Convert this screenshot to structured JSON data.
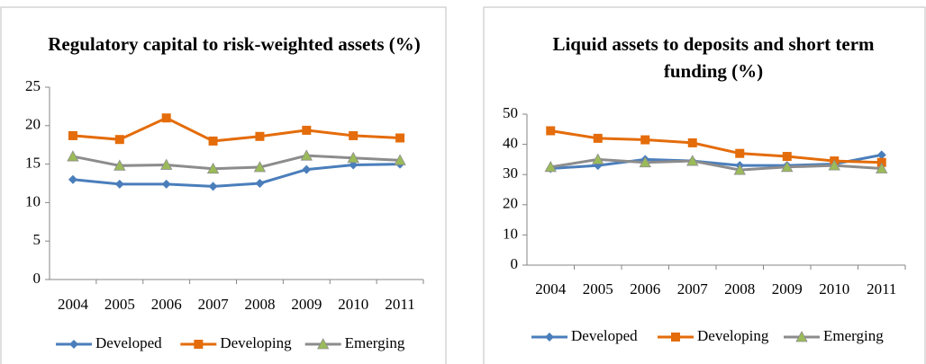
{
  "chart_data": [
    {
      "type": "line",
      "title": "Regulatory capital to risk-weighted assets (%)",
      "categories": [
        "2004",
        "2005",
        "2006",
        "2007",
        "2008",
        "2009",
        "2010",
        "2011"
      ],
      "ylim": [
        0,
        25
      ],
      "yticks": [
        0,
        5,
        10,
        15,
        20,
        25
      ],
      "series": [
        {
          "name": "Developed",
          "color": "#4a7ebb",
          "marker": "diamond",
          "values": [
            13,
            12.4,
            12.4,
            12.1,
            12.5,
            14.3,
            14.9,
            15.0
          ]
        },
        {
          "name": "Developing",
          "color": "#e46c0a",
          "marker": "square",
          "values": [
            18.7,
            18.2,
            21,
            18,
            18.6,
            19.4,
            18.7,
            18.4
          ]
        },
        {
          "name": "Emerging",
          "color": "#8c8c8c",
          "marker": "triangle",
          "values": [
            16,
            14.8,
            14.9,
            14.4,
            14.6,
            16.1,
            15.8,
            15.5
          ]
        }
      ]
    },
    {
      "type": "line",
      "title": "Liquid assets to deposits and short term funding (%)",
      "categories": [
        "2004",
        "2005",
        "2006",
        "2007",
        "2008",
        "2009",
        "2010",
        "2011"
      ],
      "ylim": [
        0,
        50
      ],
      "yticks": [
        0,
        10,
        20,
        30,
        40,
        50
      ],
      "series": [
        {
          "name": "Developed",
          "color": "#4a7ebb",
          "marker": "diamond",
          "values": [
            32,
            33,
            35,
            34.5,
            33,
            33,
            33.5,
            36.5
          ]
        },
        {
          "name": "Developing",
          "color": "#e46c0a",
          "marker": "square",
          "values": [
            44.5,
            42,
            41.5,
            40.5,
            37,
            36,
            34.5,
            34
          ]
        },
        {
          "name": "Emerging",
          "color": "#8c8c8c",
          "marker": "triangle",
          "values": [
            32.5,
            35,
            34,
            34.5,
            31.5,
            32.5,
            33,
            32
          ]
        }
      ]
    }
  ]
}
